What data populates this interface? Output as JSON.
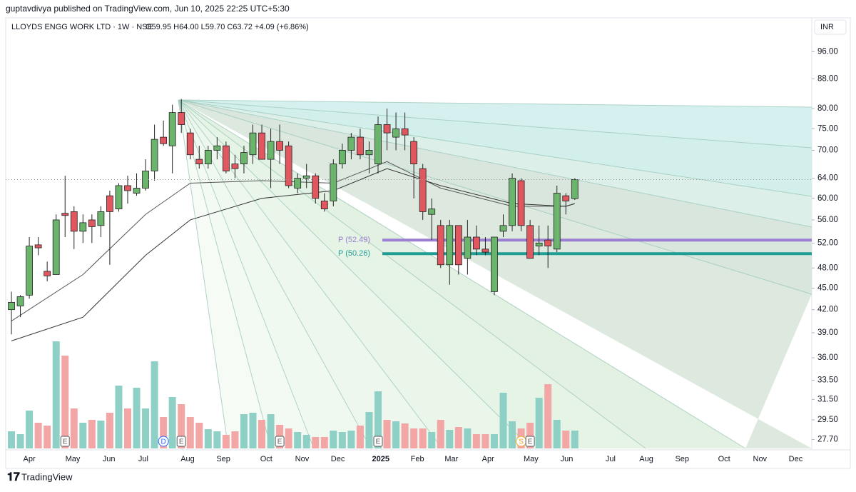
{
  "header": {
    "published": "guptavdivya published on TradingView.com, Jun 10, 2025 22:25 UTC+5:30",
    "footer": "TradingView"
  },
  "chart_data": {
    "type": "candlestick",
    "title": "LLOYDS ENGG WORK LTD · 1W · NSE",
    "ohlc_text": "O59.95 H64.00 L59.70 C63.72 +4.09 (+6.86%)",
    "currency": "INR",
    "log_scale": true,
    "up_color": "#6ab46c",
    "down_color": "#e0575f",
    "ylim": [
      26.8,
      107
    ],
    "yticks": [
      {
        "value": 96,
        "label": "96.00"
      },
      {
        "value": 88,
        "label": "88.00"
      },
      {
        "value": 80,
        "label": "80.00"
      },
      {
        "value": 75,
        "label": "75.00"
      },
      {
        "value": 70,
        "label": "70.00"
      },
      {
        "value": 64,
        "label": "64.00"
      },
      {
        "value": 60,
        "label": "60.00"
      },
      {
        "value": 56,
        "label": "56.00"
      },
      {
        "value": 52,
        "label": "52.00"
      },
      {
        "value": 48,
        "label": "48.00"
      },
      {
        "value": 45,
        "label": "45.00"
      },
      {
        "value": 42,
        "label": "42.00"
      },
      {
        "value": 39,
        "label": "39.00"
      },
      {
        "value": 36,
        "label": "36.00"
      },
      {
        "value": 33.5,
        "label": "33.50"
      },
      {
        "value": 31.5,
        "label": "31.50"
      },
      {
        "value": 29.5,
        "label": "29.50"
      },
      {
        "value": 27.7,
        "label": "27.70"
      }
    ],
    "xlim": [
      -0.64,
      89.5
    ],
    "xticks": [
      {
        "value": 2,
        "label": "Apr"
      },
      {
        "value": 6.86,
        "label": "May"
      },
      {
        "value": 10.9,
        "label": "Jun"
      },
      {
        "value": 14.75,
        "label": "Jul"
      },
      {
        "value": 19.7,
        "label": "Aug"
      },
      {
        "value": 23.7,
        "label": "Sep"
      },
      {
        "value": 28.5,
        "label": "Oct"
      },
      {
        "value": 32.5,
        "label": "Nov"
      },
      {
        "value": 36.5,
        "label": "Dec"
      },
      {
        "value": 41.3,
        "label": "2025"
      },
      {
        "value": 45.4,
        "label": "Feb"
      },
      {
        "value": 49.2,
        "label": "Mar"
      },
      {
        "value": 53.3,
        "label": "Apr"
      },
      {
        "value": 58.1,
        "label": "May"
      },
      {
        "value": 62.1,
        "label": "Jun"
      },
      {
        "value": 67,
        "label": "Jul"
      },
      {
        "value": 71,
        "label": "Aug"
      },
      {
        "value": 75,
        "label": "Sep"
      },
      {
        "value": 79.7,
        "label": "Oct"
      },
      {
        "value": 83.7,
        "label": "Nov"
      },
      {
        "value": 87.7,
        "label": "Dec"
      }
    ],
    "open": [
      42,
      42.5,
      44,
      51.7,
      47.5,
      47,
      57.2,
      57.5,
      54,
      56,
      55,
      60.5,
      58,
      62.5,
      61,
      62,
      65.5,
      73,
      71,
      79,
      74,
      68,
      67,
      70,
      71,
      67,
      67,
      69,
      74,
      68,
      72,
      71,
      62,
      64,
      64.5,
      59.5,
      59.5,
      67,
      70,
      73,
      69,
      67,
      76,
      73,
      75,
      72,
      66,
      57,
      55,
      48.5,
      55,
      49.5,
      53,
      51,
      44.5,
      54,
      55,
      63.5,
      55,
      51.5,
      52.5,
      51,
      60.5,
      59.95
    ],
    "high": [
      44.5,
      44,
      53,
      53,
      49,
      57,
      64.5,
      58.5,
      57,
      57,
      58.5,
      61.5,
      63,
      64.5,
      65,
      68,
      76,
      77,
      81,
      82.5,
      75,
      71,
      71,
      73,
      72,
      69,
      71,
      76,
      76,
      75,
      76,
      72,
      65,
      67,
      65,
      61,
      68,
      71.5,
      74,
      75,
      72,
      78,
      80,
      79,
      79,
      73,
      67,
      60,
      56,
      56,
      55,
      56,
      55,
      53,
      53,
      57,
      65,
      64,
      56,
      55,
      55,
      62.5,
      61,
      64
    ],
    "low": [
      38.8,
      41,
      43.5,
      50,
      46,
      47,
      53,
      51,
      52,
      52,
      53,
      48.5,
      57.5,
      59,
      60.5,
      61.5,
      63.5,
      71,
      65,
      74,
      68,
      66,
      66,
      68,
      65,
      64,
      65,
      67,
      68,
      62,
      67,
      62,
      61,
      62,
      59,
      57.5,
      58.5,
      66,
      68,
      68,
      65,
      65,
      70,
      70,
      70,
      60,
      56,
      52.5,
      48,
      45.5,
      47,
      47,
      50,
      50,
      44,
      53,
      54,
      54,
      49.5,
      50,
      48,
      50.5,
      57,
      59.7
    ],
    "close": [
      43,
      43.8,
      51.5,
      51.2,
      46.8,
      56,
      56.8,
      54,
      55.5,
      54.8,
      57.5,
      57.5,
      62.5,
      61.5,
      62,
      65.5,
      72.5,
      71.5,
      79,
      76,
      69,
      67,
      70,
      71,
      65.5,
      66,
      69.5,
      74,
      68,
      72,
      70,
      62.5,
      64,
      64.5,
      60,
      58,
      67,
      70,
      73,
      69,
      70,
      76,
      74,
      75,
      73.5,
      67,
      57.5,
      58,
      48.5,
      55,
      48.5,
      53,
      51,
      50.5,
      53,
      55,
      64,
      55,
      49.5,
      52,
      51.5,
      61,
      59.5,
      63.72
    ],
    "volume": [
      24,
      20,
      53,
      36,
      32,
      150,
      130,
      56,
      36,
      40,
      39,
      50,
      88,
      56,
      85,
      56,
      122,
      44,
      72,
      62,
      44,
      36,
      27,
      24,
      19,
      24,
      48,
      50,
      40,
      48,
      33,
      28,
      23,
      19,
      16,
      16,
      25,
      23,
      25,
      32,
      51,
      80,
      40,
      38,
      35,
      28,
      28,
      23,
      40,
      26,
      30,
      28,
      20,
      20,
      20,
      78,
      38,
      28,
      36,
      71,
      90,
      40,
      25,
      25
    ],
    "vlim": [
      0,
      160
    ],
    "moving_averages": [
      {
        "color": "#555",
        "x": [
          0,
          8,
          15,
          20,
          28,
          36,
          42,
          48,
          56,
          62,
          63
        ],
        "values": [
          40.5,
          47,
          57,
          63,
          63.5,
          63,
          67.5,
          62,
          58.5,
          58.5,
          59
        ]
      },
      {
        "color": "#333",
        "x": [
          0,
          8,
          15,
          20,
          28,
          36,
          42,
          48,
          56,
          62,
          63
        ],
        "values": [
          38,
          41,
          50,
          56,
          60,
          61.5,
          66,
          62.5,
          59,
          58.5,
          59
        ]
      }
    ],
    "levels": [
      {
        "value": 52.49,
        "label": "P (52.49)",
        "color": "#9b7fd0"
      },
      {
        "value": 50.26,
        "label": "P (50.26)",
        "color": "#1f9e96"
      }
    ],
    "events": [
      {
        "x": 6,
        "label": "E"
      },
      {
        "x": 17,
        "label": "D"
      },
      {
        "x": 19,
        "label": "E"
      },
      {
        "x": 30,
        "label": "E"
      },
      {
        "x": 41,
        "label": "E"
      },
      {
        "x": 57,
        "label": "S"
      },
      {
        "x": 58,
        "label": "E"
      }
    ]
  }
}
